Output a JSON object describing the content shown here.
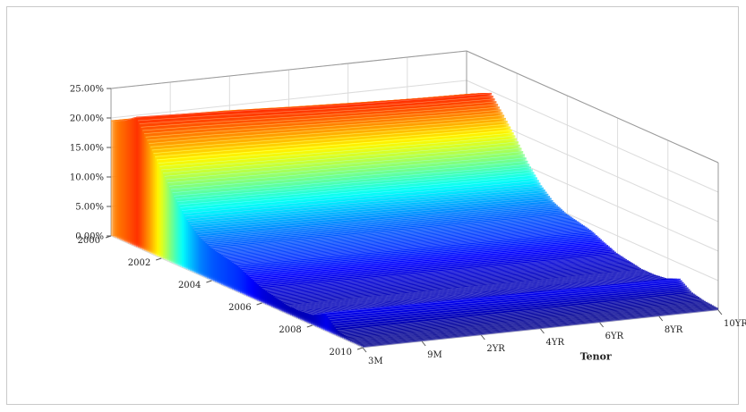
{
  "chart_data": {
    "type": "surface",
    "title": "",
    "xlabel": "Tenor",
    "ylabel": "",
    "zlabel": "",
    "z_ticks": [
      "0.00%",
      "5.00%",
      "10.00%",
      "15.00%",
      "20.00%",
      "25.00%"
    ],
    "zlim": [
      0,
      25
    ],
    "year_ticks": [
      "2000",
      "2002",
      "2004",
      "2006",
      "2008",
      "2010"
    ],
    "tenor_ticks": [
      "3M",
      "9M",
      "2YR",
      "4YR",
      "6YR",
      "8YR",
      "10YR"
    ],
    "grid": true,
    "colormap": "jet",
    "series": [
      {
        "year": 2000.0,
        "values": [
          19.5,
          19.4,
          19.1,
          18.6,
          18.2,
          17.8,
          17.6
        ]
      },
      {
        "year": 2000.5,
        "values": [
          20.5,
          20.3,
          20.0,
          19.6,
          19.2,
          18.9,
          18.7
        ]
      },
      {
        "year": 2001.0,
        "values": [
          22.0,
          21.6,
          21.1,
          20.6,
          20.2,
          19.9,
          19.7
        ]
      },
      {
        "year": 2001.5,
        "values": [
          18.5,
          18.3,
          18.0,
          17.7,
          17.4,
          17.1,
          16.9
        ]
      },
      {
        "year": 2002.0,
        "values": [
          15.0,
          14.8,
          14.6,
          14.4,
          14.2,
          14.0,
          13.9
        ]
      },
      {
        "year": 2002.5,
        "values": [
          11.5,
          11.3,
          11.1,
          11.0,
          10.8,
          10.6,
          10.5
        ]
      },
      {
        "year": 2003.0,
        "values": [
          8.5,
          8.4,
          8.3,
          8.2,
          8.0,
          7.9,
          7.8
        ]
      },
      {
        "year": 2003.5,
        "values": [
          6.5,
          6.4,
          6.3,
          6.2,
          6.1,
          6.0,
          5.9
        ]
      },
      {
        "year": 2004.0,
        "values": [
          5.5,
          5.4,
          5.3,
          5.2,
          5.1,
          5.0,
          4.9
        ]
      },
      {
        "year": 2004.5,
        "values": [
          5.0,
          4.9,
          4.8,
          4.7,
          4.6,
          4.5,
          4.4
        ]
      },
      {
        "year": 2005.0,
        "values": [
          4.5,
          4.4,
          4.3,
          4.2,
          4.1,
          4.0,
          3.9
        ]
      },
      {
        "year": 2005.5,
        "values": [
          3.5,
          3.4,
          3.3,
          3.2,
          3.1,
          3.0,
          2.9
        ]
      },
      {
        "year": 2006.0,
        "values": [
          2.5,
          2.4,
          2.3,
          2.2,
          2.1,
          2.0,
          2.0
        ]
      },
      {
        "year": 2006.5,
        "values": [
          2.0,
          1.9,
          1.9,
          1.8,
          1.7,
          1.7,
          1.6
        ]
      },
      {
        "year": 2007.0,
        "values": [
          1.5,
          1.5,
          1.4,
          1.4,
          1.3,
          1.3,
          1.2
        ]
      },
      {
        "year": 2007.5,
        "values": [
          1.5,
          1.5,
          1.4,
          1.4,
          1.3,
          1.3,
          1.2
        ]
      },
      {
        "year": 2008.0,
        "values": [
          1.8,
          1.8,
          1.7,
          1.7,
          1.6,
          1.5,
          1.5
        ]
      },
      {
        "year": 2008.5,
        "values": [
          3.0,
          2.9,
          2.8,
          2.7,
          2.6,
          2.5,
          2.4
        ]
      },
      {
        "year": 2009.0,
        "values": [
          1.0,
          1.0,
          1.0,
          1.0,
          1.0,
          1.0,
          1.0
        ]
      },
      {
        "year": 2009.5,
        "values": [
          0.5,
          0.5,
          0.5,
          0.5,
          0.5,
          0.5,
          0.5
        ]
      },
      {
        "year": 2010.0,
        "values": [
          0.3,
          0.3,
          0.3,
          0.3,
          0.3,
          0.3,
          0.3
        ]
      }
    ]
  }
}
